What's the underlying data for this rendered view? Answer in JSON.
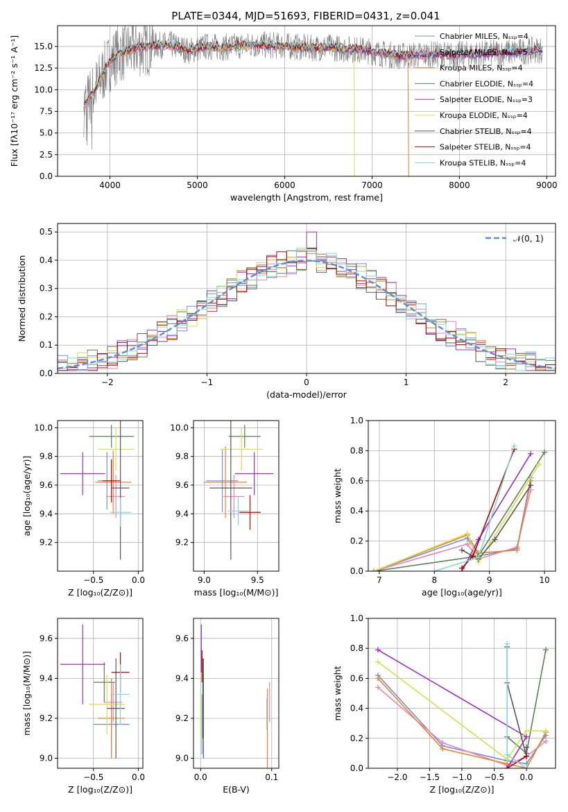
{
  "figure_title": "PLATE=0344, MJD=51693, FIBERID=0431, z=0.041",
  "series_colors": [
    "#6f8fd6",
    "#ec82b5",
    "#e8822a",
    "#5c7f56",
    "#9b2fbf",
    "#d6e04a",
    "#565656",
    "#b30000",
    "#7fd8dc"
  ],
  "chart_data": [
    {
      "id": "spectrum",
      "type": "line",
      "title": "PLATE=0344, MJD=51693, FIBERID=0431, z=0.041",
      "xlabel": "wavelength [Angstrom, rest frame]",
      "ylabel": "Flux [fλ10⁻¹⁷ erg cm⁻² s⁻¹ A⁻¹]",
      "xlim": [
        3400,
        9100
      ],
      "ylim": [
        0,
        17.4
      ],
      "xticks": [
        4000,
        5000,
        6000,
        7000,
        8000,
        9000
      ],
      "yticks": [
        0.0,
        2.5,
        5.0,
        7.5,
        10.0,
        12.5,
        15.0
      ],
      "legend_position": "top-right",
      "legend": [
        "Chabrier MILES, Nₛₛₚ=4",
        "Salpeter MILES, Nₛₛₚ=5",
        "Kroupa MILES, Nₛₛₚ=4",
        "Chabrier ELODIE, Nₛₛₚ=4",
        "Salpeter ELODIE, Nₛₛₚ=3",
        "Kroupa ELODIE, Nₛₛₚ=4",
        "Chabrier STELIB, Nₛₛₚ=4",
        "Salpeter STELIB, Nₛₛₚ=4",
        "Kroupa STELIB, Nₛₛₚ=4"
      ],
      "data_envelope": {
        "x": [
          3700,
          3800,
          3900,
          4000,
          4100,
          4200,
          4300,
          4500,
          4700,
          4900,
          5100,
          5300,
          5500,
          5700,
          5900,
          6100,
          6300,
          6500,
          6700,
          6900,
          7100,
          7300,
          7500,
          7700,
          7900,
          8100,
          8300,
          8500,
          8700,
          8900
        ],
        "y": [
          8,
          9.5,
          11.5,
          13.2,
          14.2,
          14.5,
          14.8,
          15.1,
          15.2,
          14.5,
          15.0,
          14.9,
          15.1,
          15.2,
          15.1,
          15.0,
          14.8,
          14.9,
          14.7,
          14.6,
          14.2,
          13.9,
          14.0,
          14.1,
          14.0,
          14.1,
          14.2,
          14.3,
          14.4,
          14.6
        ]
      }
    },
    {
      "id": "residuals",
      "type": "histogram",
      "xlabel": "(data-model)/error",
      "ylabel": "Normed distribution",
      "xlim": [
        -2.5,
        2.5
      ],
      "ylim": [
        0,
        0.53
      ],
      "xticks": [
        -2,
        -1,
        0,
        1,
        2
      ],
      "yticks": [
        0.0,
        0.1,
        0.2,
        0.3,
        0.4,
        0.5
      ],
      "legend_position": "top-right",
      "legend": [
        "𝒩(0, 1)"
      ],
      "bin_width": 0.1,
      "reference_curve": "gaussian mean 0, sigma 1",
      "peak_value": 0.5
    },
    {
      "id": "age-vs-Z",
      "type": "errorbar",
      "xlabel": "Z [log₁₀(Z/Z⊙)]",
      "ylabel": "age  [log₁₀(age/yr)]",
      "xlim": [
        -0.9,
        0.05
      ],
      "ylim": [
        9.0,
        10.05
      ],
      "xticks": [
        -0.5,
        0.0
      ],
      "yticks": [
        9.2,
        9.4,
        9.6,
        9.8,
        10.0
      ],
      "points": [
        {
          "x": -0.35,
          "y": 9.63,
          "xerr": 0.1,
          "yerr": 0.2,
          "series": 0
        },
        {
          "x": -0.25,
          "y": 9.52,
          "xerr": 0.1,
          "yerr": 0.15,
          "series": 1
        },
        {
          "x": -0.28,
          "y": 9.62,
          "xerr": 0.2,
          "yerr": 0.22,
          "series": 2
        },
        {
          "x": -0.3,
          "y": 9.94,
          "xerr": 0.25,
          "yerr": 0.08,
          "series": 3
        },
        {
          "x": -0.62,
          "y": 9.68,
          "xerr": 0.25,
          "yerr": 0.15,
          "series": 4
        },
        {
          "x": -0.25,
          "y": 9.85,
          "xerr": 0.2,
          "yerr": 0.15,
          "series": 5
        },
        {
          "x": -0.2,
          "y": 9.58,
          "xerr": 0.1,
          "yerr": 0.5,
          "series": 6
        },
        {
          "x": -0.3,
          "y": 9.63,
          "xerr": 0.1,
          "yerr": 0.15,
          "series": 7
        },
        {
          "x": -0.2,
          "y": 9.41,
          "xerr": 0.12,
          "yerr": 0.1,
          "series": 8
        }
      ]
    },
    {
      "id": "age-vs-mass",
      "type": "errorbar",
      "xlabel": "mass [log₁₀(M/M⊙)]",
      "ylabel": "",
      "xlim": [
        8.9,
        9.7
      ],
      "ylim": [
        9.0,
        10.05
      ],
      "xticks": [
        9.0,
        9.5
      ],
      "yticks": [
        9.2,
        9.4,
        9.6,
        9.8,
        10.0
      ],
      "points": [
        {
          "x": 9.17,
          "y": 9.63,
          "xerr": 0.15,
          "yerr": 0.22,
          "series": 0
        },
        {
          "x": 9.28,
          "y": 9.52,
          "xerr": 0.1,
          "yerr": 0.15,
          "series": 1
        },
        {
          "x": 9.2,
          "y": 9.62,
          "xerr": 0.2,
          "yerr": 0.25,
          "series": 2
        },
        {
          "x": 9.38,
          "y": 9.94,
          "xerr": 0.15,
          "yerr": 0.08,
          "series": 3
        },
        {
          "x": 9.47,
          "y": 9.68,
          "xerr": 0.18,
          "yerr": 0.15,
          "series": 4
        },
        {
          "x": 9.35,
          "y": 9.85,
          "xerr": 0.2,
          "yerr": 0.15,
          "series": 5
        },
        {
          "x": 9.25,
          "y": 9.58,
          "xerr": 0.2,
          "yerr": 0.5,
          "series": 6
        },
        {
          "x": 9.43,
          "y": 9.41,
          "xerr": 0.1,
          "yerr": 0.12,
          "series": 7
        },
        {
          "x": 9.32,
          "y": 9.42,
          "xerr": 0.1,
          "yerr": 0.1,
          "series": 8
        }
      ]
    },
    {
      "id": "weight-vs-age",
      "type": "line",
      "xlabel": "age  [log₁₀(age/yr)]",
      "ylabel": "mass weight",
      "xlim": [
        6.8,
        10.2
      ],
      "ylim": [
        0,
        1.0
      ],
      "xticks": [
        7,
        8,
        9,
        10
      ],
      "yticks": [
        0.0,
        0.2,
        0.4,
        0.6,
        0.8,
        1.0
      ],
      "series": [
        {
          "x": [
            6.9,
            8.6,
            8.8,
            9.5,
            9.75
          ],
          "y": [
            0.0,
            0.22,
            0.1,
            0.15,
            0.62
          ]
        },
        {
          "x": [
            6.9,
            8.6,
            8.8,
            9.5,
            9.75
          ],
          "y": [
            0.0,
            0.18,
            0.08,
            0.16,
            0.54
          ]
        },
        {
          "x": [
            6.9,
            8.6,
            8.8,
            9.5,
            9.75
          ],
          "y": [
            0.0,
            0.24,
            0.12,
            0.14,
            0.6
          ]
        },
        {
          "x": [
            6.9,
            8.8,
            10.0
          ],
          "y": [
            0.0,
            0.1,
            0.79
          ]
        },
        {
          "x": [
            8.5,
            8.8,
            9.75
          ],
          "y": [
            0.0,
            0.21,
            0.78
          ]
        },
        {
          "x": [
            6.9,
            8.6,
            8.8,
            9.9
          ],
          "y": [
            0.0,
            0.25,
            0.06,
            0.71
          ]
        },
        {
          "x": [
            8.5,
            8.8,
            9.1,
            9.75
          ],
          "y": [
            0.14,
            0.08,
            0.21,
            0.57
          ]
        },
        {
          "x": [
            8.5,
            8.7,
            9.45
          ],
          "y": [
            0.02,
            0.1,
            0.81
          ]
        },
        {
          "x": [
            8.0,
            8.8,
            9.45
          ],
          "y": [
            0.0,
            0.09,
            0.83
          ]
        }
      ]
    },
    {
      "id": "mass-vs-Z",
      "type": "errorbar",
      "xlabel": "Z [log₁₀(Z/Z⊙)]",
      "ylabel": "mass [log₁₀(M/M⊙)]",
      "xlim": [
        -0.9,
        0.05
      ],
      "ylim": [
        8.95,
        9.7
      ],
      "xticks": [
        -0.5,
        0.0
      ],
      "yticks": [
        9.0,
        9.2,
        9.4,
        9.6
      ],
      "points": [
        {
          "x": -0.3,
          "y": 9.17,
          "xerr": 0.2,
          "yerr": 0.15,
          "series": 0
        },
        {
          "x": -0.28,
          "y": 9.28,
          "xerr": 0.1,
          "yerr": 0.1,
          "series": 1
        },
        {
          "x": -0.3,
          "y": 9.2,
          "xerr": 0.15,
          "yerr": 0.2,
          "series": 2
        },
        {
          "x": -0.38,
          "y": 9.38,
          "xerr": 0.12,
          "yerr": 0.1,
          "series": 3
        },
        {
          "x": -0.62,
          "y": 9.47,
          "xerr": 0.25,
          "yerr": 0.2,
          "series": 4
        },
        {
          "x": -0.35,
          "y": 9.27,
          "xerr": 0.2,
          "yerr": 0.15,
          "series": 5
        },
        {
          "x": -0.25,
          "y": 9.25,
          "xerr": 0.1,
          "yerr": 0.25,
          "series": 6
        },
        {
          "x": -0.2,
          "y": 9.43,
          "xerr": 0.1,
          "yerr": 0.1,
          "series": 7
        },
        {
          "x": -0.2,
          "y": 9.32,
          "xerr": 0.1,
          "yerr": 0.15,
          "series": 8
        }
      ]
    },
    {
      "id": "mass-vs-ebv",
      "type": "errorbar",
      "xlabel": "E(B-V)",
      "ylabel": "",
      "xlim": [
        -0.01,
        0.11
      ],
      "ylim": [
        8.95,
        9.7
      ],
      "xticks": [
        0.0,
        0.1
      ],
      "yticks": [
        9.0,
        9.2,
        9.4,
        9.6
      ],
      "points": [
        {
          "x": 0.002,
          "y": 9.17,
          "xerr": 0,
          "yerr": 0.15,
          "series": 0
        },
        {
          "x": 0.097,
          "y": 9.28,
          "xerr": 0,
          "yerr": 0.1,
          "series": 1
        },
        {
          "x": 0.094,
          "y": 9.15,
          "xerr": 0,
          "yerr": 0.2,
          "series": 2
        },
        {
          "x": 0.003,
          "y": 9.3,
          "xerr": 0,
          "yerr": 0.2,
          "series": 3
        },
        {
          "x": 0.001,
          "y": 9.55,
          "xerr": 0,
          "yerr": 0.12,
          "series": 4
        },
        {
          "x": 0.0,
          "y": 9.2,
          "xerr": 0,
          "yerr": 0.12,
          "series": 5
        },
        {
          "x": 0.004,
          "y": 9.25,
          "xerr": 0,
          "yerr": 0.25,
          "series": 6
        },
        {
          "x": 0.002,
          "y": 9.46,
          "xerr": 0,
          "yerr": 0.08,
          "series": 7
        },
        {
          "x": 0.093,
          "y": 9.22,
          "xerr": 0,
          "yerr": 0.08,
          "series": 8
        }
      ]
    },
    {
      "id": "weight-vs-Z",
      "type": "line",
      "xlabel": "Z [log₁₀(Z/Z⊙)]",
      "ylabel": "mass weight",
      "xlim": [
        -2.45,
        0.45
      ],
      "ylim": [
        0,
        1.0
      ],
      "xticks": [
        -2.0,
        -1.5,
        -1.0,
        -0.5,
        0.0
      ],
      "yticks": [
        0.0,
        0.2,
        0.4,
        0.6,
        0.8,
        1.0
      ],
      "series": [
        {
          "x": [
            -2.3,
            -1.3,
            -0.3,
            0.0,
            0.3
          ],
          "y": [
            0.62,
            0.15,
            0.05,
            0.03,
            0.22
          ]
        },
        {
          "x": [
            -2.3,
            -1.3,
            -0.3,
            0.0,
            0.3
          ],
          "y": [
            0.54,
            0.17,
            0.02,
            0.08,
            0.18
          ]
        },
        {
          "x": [
            -2.3,
            -1.3,
            -0.3,
            0.0,
            0.3
          ],
          "y": [
            0.6,
            0.13,
            0.03,
            0.0,
            0.24
          ]
        },
        {
          "x": [
            -0.3,
            0.0,
            0.3
          ],
          "y": [
            0.21,
            0.1,
            0.79
          ]
        },
        {
          "x": [
            -2.3,
            0.0,
            -0.3
          ],
          "y": [
            0.79,
            0.21,
            0.0
          ]
        },
        {
          "x": [
            -2.3,
            -0.3,
            0.0,
            0.3
          ],
          "y": [
            0.71,
            0.06,
            0.25,
            0.25
          ]
        },
        {
          "x": [
            -0.3,
            -0.3,
            0.0,
            0.0
          ],
          "y": [
            0.81,
            0.57,
            0.08,
            0.14
          ]
        },
        {
          "x": [
            -0.3,
            0.0
          ],
          "y": [
            0.0,
            0.08
          ]
        },
        {
          "x": [
            -0.3,
            -0.3,
            0.0
          ],
          "y": [
            0.83,
            0.09,
            0.0
          ]
        }
      ]
    }
  ]
}
